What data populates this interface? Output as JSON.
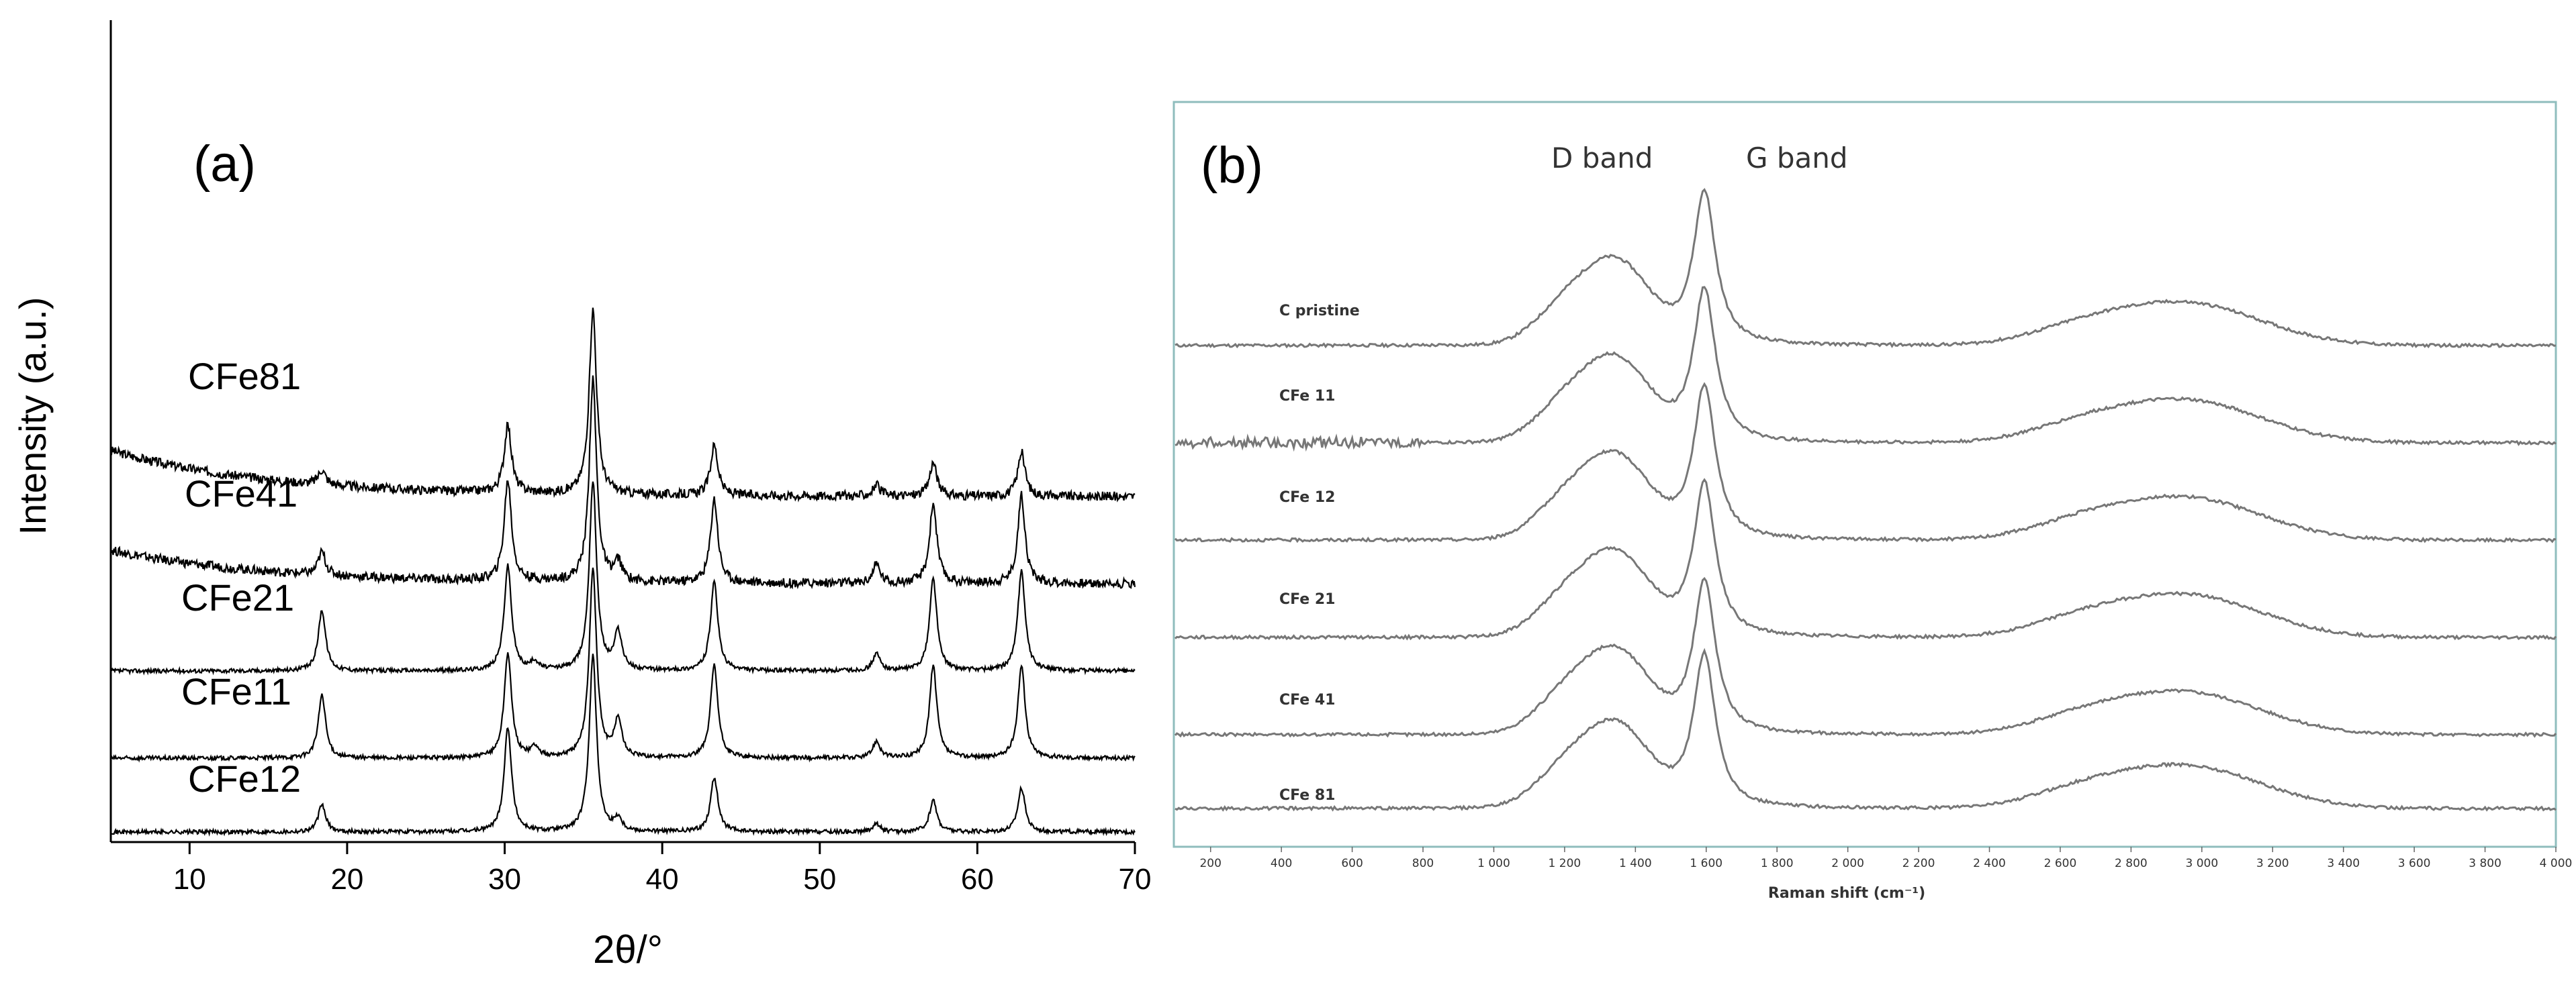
{
  "chart_data": [
    {
      "panel_label": "(a)",
      "type": "line",
      "xlabel": "2θ/°",
      "ylabel": "Intensity (a.u.)",
      "xlim": [
        5,
        70
      ],
      "x_ticks": [
        10,
        20,
        30,
        40,
        50,
        60,
        70
      ],
      "y_ticks_shown": false,
      "series": [
        {
          "name": "CFe81",
          "peaks": [
            [
              18.4,
              0.35
            ],
            [
              30.2,
              1.6
            ],
            [
              35.6,
              4.4
            ],
            [
              43.3,
              1.2
            ],
            [
              53.6,
              0.25
            ],
            [
              57.2,
              0.8
            ],
            [
              62.8,
              1.05
            ]
          ]
        },
        {
          "name": "CFe41",
          "peaks": [
            [
              18.4,
              0.55
            ],
            [
              30.2,
              2.4
            ],
            [
              35.6,
              4.8
            ],
            [
              37.2,
              0.45
            ],
            [
              43.3,
              2.0
            ],
            [
              53.6,
              0.45
            ],
            [
              57.2,
              1.9
            ],
            [
              62.8,
              2.1
            ]
          ]
        },
        {
          "name": "CFe21",
          "peaks": [
            [
              18.4,
              1.45
            ],
            [
              30.2,
              2.5
            ],
            [
              31.9,
              0.2
            ],
            [
              35.6,
              4.5
            ],
            [
              37.2,
              0.9
            ],
            [
              43.3,
              2.1
            ],
            [
              53.6,
              0.4
            ],
            [
              57.2,
              2.2
            ],
            [
              62.8,
              2.4
            ]
          ]
        },
        {
          "name": "CFe11",
          "peaks": [
            [
              18.4,
              1.5
            ],
            [
              30.2,
              2.5
            ],
            [
              31.9,
              0.25
            ],
            [
              35.6,
              4.5
            ],
            [
              37.2,
              0.9
            ],
            [
              43.3,
              2.2
            ],
            [
              53.6,
              0.4
            ],
            [
              57.2,
              2.2
            ],
            [
              62.8,
              2.2
            ]
          ]
        },
        {
          "name": "CFe12",
          "peaks": [
            [
              18.4,
              0.65
            ],
            [
              30.2,
              2.5
            ],
            [
              35.6,
              4.2
            ],
            [
              37.2,
              0.3
            ],
            [
              43.3,
              1.3
            ],
            [
              53.6,
              0.2
            ],
            [
              57.2,
              0.75
            ],
            [
              62.8,
              1.05
            ]
          ]
        }
      ]
    },
    {
      "panel_label": "(b)",
      "type": "line",
      "xlabel": "Raman shift (cm⁻¹)",
      "xlim": [
        100,
        4000
      ],
      "x_ticks": [
        "200",
        "400",
        "600",
        "800",
        "1 000",
        "1 200",
        "1 400",
        "1 600",
        "1 800",
        "2 000",
        "2 200",
        "2 400",
        "2 600",
        "2 800",
        "3 000",
        "3 200",
        "3 400",
        "3 600",
        "3 800",
        "4 000"
      ],
      "annotations": [
        "D band",
        "G band"
      ],
      "series": [
        {
          "name": "C pristine",
          "D_band_cm1": 1350,
          "G_band_cm1": 1595
        },
        {
          "name": "CFe 11",
          "D_band_cm1": 1350,
          "G_band_cm1": 1595
        },
        {
          "name": "CFe 12",
          "D_band_cm1": 1350,
          "G_band_cm1": 1595
        },
        {
          "name": "CFe 21",
          "D_band_cm1": 1350,
          "G_band_cm1": 1595
        },
        {
          "name": "CFe 41",
          "D_band_cm1": 1350,
          "G_band_cm1": 1595
        },
        {
          "name": "CFe 81",
          "D_band_cm1": 1350,
          "G_band_cm1": 1595
        }
      ]
    }
  ]
}
